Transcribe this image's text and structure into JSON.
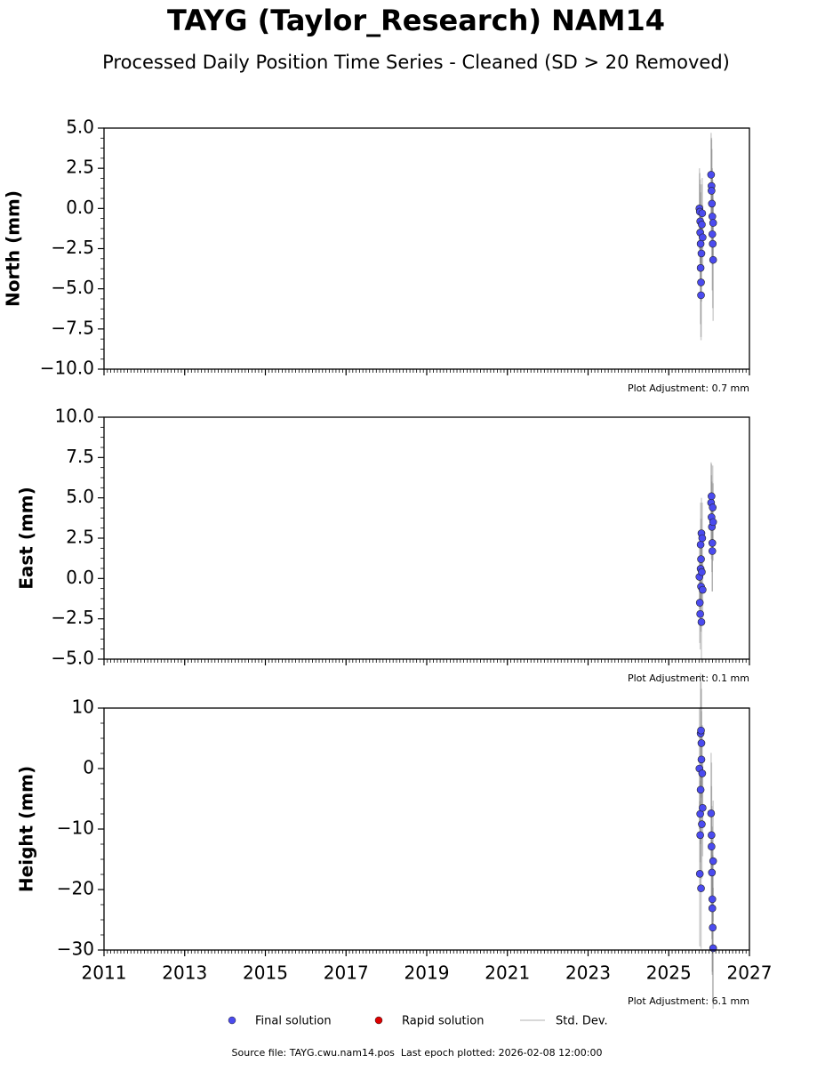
{
  "title": "TAYG (Taylor_Research) NAM14",
  "subtitle": "Processed Daily Position Time Series - Cleaned (SD > 20 Removed)",
  "legend": [
    {
      "name": "Final solution",
      "color": "#4b4bef",
      "marker": "dot"
    },
    {
      "name": "Rapid solution",
      "color": "#dd0000",
      "marker": "dot"
    },
    {
      "name": "Std. Dev.",
      "color": "#cccccc",
      "marker": "line"
    }
  ],
  "footer": "Source file: TAYG.cwu.nam14.pos  Last epoch plotted: 2026-02-08 12:00:00",
  "chart_data": [
    {
      "type": "scatter",
      "ylabel": "North (mm)",
      "annotation": "Plot Adjustment: 0.7 mm",
      "xlim": [
        2011,
        2027
      ],
      "xticks": [
        2011,
        2013,
        2015,
        2017,
        2019,
        2021,
        2023,
        2025,
        2027
      ],
      "xticklabels": false,
      "ylim": [
        -10,
        5
      ],
      "yticks": [
        {
          "value": -10,
          "label": "−10.0"
        },
        {
          "value": -7.5,
          "label": "−7.5"
        },
        {
          "value": -5,
          "label": "−5.0"
        },
        {
          "value": -2.5,
          "label": "−2.5"
        },
        {
          "value": 0,
          "label": "0.0"
        },
        {
          "value": 2.5,
          "label": "2.5"
        },
        {
          "value": 5,
          "label": "5.0"
        }
      ],
      "series": [
        {
          "color": "#4b4bef",
          "error_color": "#777777",
          "x": [
            2025.76,
            2025.77,
            2025.78,
            2025.78,
            2025.79,
            2025.79,
            2025.8,
            2025.8,
            2025.81,
            2025.82,
            2025.83,
            2025.84,
            2026.05,
            2026.06,
            2026.06,
            2026.07,
            2026.08,
            2026.08,
            2026.09,
            2026.1,
            2026.1
          ],
          "values": [
            0.0,
            -0.2,
            -0.8,
            -1.5,
            -2.2,
            -3.7,
            -4.6,
            -5.4,
            -2.8,
            -1.0,
            -0.3,
            -1.8,
            2.1,
            1.4,
            1.1,
            0.3,
            -0.5,
            -1.6,
            -2.2,
            -3.2,
            -0.9
          ],
          "errors": [
            2.5,
            2.4,
            2.6,
            3.0,
            3.2,
            3.5,
            3.4,
            2.8,
            3.0,
            2.5,
            2.2,
            2.0,
            2.6,
            3.0,
            3.2,
            3.4,
            3.0,
            3.5,
            4.0,
            3.8,
            2.5
          ]
        }
      ]
    },
    {
      "type": "scatter",
      "ylabel": "East (mm)",
      "annotation": "Plot Adjustment: 0.1 mm",
      "xlim": [
        2011,
        2027
      ],
      "xticks": [
        2011,
        2013,
        2015,
        2017,
        2019,
        2021,
        2023,
        2025,
        2027
      ],
      "xticklabels": false,
      "ylim": [
        -5,
        10
      ],
      "yticks": [
        {
          "value": -5,
          "label": "−5.0"
        },
        {
          "value": -2.5,
          "label": "−2.5"
        },
        {
          "value": 0,
          "label": "0.0"
        },
        {
          "value": 2.5,
          "label": "2.5"
        },
        {
          "value": 5,
          "label": "5.0"
        },
        {
          "value": 7.5,
          "label": "7.5"
        },
        {
          "value": 10,
          "label": "10.0"
        }
      ],
      "series": [
        {
          "color": "#4b4bef",
          "error_color": "#777777",
          "x": [
            2025.76,
            2025.77,
            2025.78,
            2025.79,
            2025.79,
            2025.8,
            2025.8,
            2025.81,
            2025.81,
            2025.82,
            2025.83,
            2025.84,
            2026.05,
            2026.06,
            2026.06,
            2026.07,
            2026.08,
            2026.08,
            2026.09,
            2026.1
          ],
          "values": [
            0.1,
            -1.5,
            -2.2,
            0.6,
            2.1,
            1.2,
            -0.5,
            2.8,
            -2.7,
            0.4,
            2.5,
            -0.7,
            4.7,
            5.1,
            3.8,
            3.2,
            2.2,
            1.7,
            4.4,
            3.5
          ],
          "errors": [
            2.0,
            2.5,
            2.2,
            2.4,
            2.6,
            2.5,
            2.8,
            2.2,
            2.5,
            2.0,
            2.2,
            2.0,
            2.5,
            2.0,
            2.6,
            2.8,
            3.0,
            2.5,
            2.6,
            2.4
          ]
        }
      ]
    },
    {
      "type": "scatter",
      "ylabel": "Height (mm)",
      "annotation": "Plot Adjustment: 6.1 mm",
      "xlim": [
        2011,
        2027
      ],
      "xticks": [
        2011,
        2013,
        2015,
        2017,
        2019,
        2021,
        2023,
        2025,
        2027
      ],
      "xticklabels": true,
      "ylim": [
        -30,
        10
      ],
      "yticks": [
        {
          "value": -30,
          "label": "−30"
        },
        {
          "value": -20,
          "label": "−20"
        },
        {
          "value": -10,
          "label": "−10"
        },
        0,
        10
      ],
      "series": [
        {
          "color": "#4b4bef",
          "error_color": "#777777",
          "x": [
            2025.76,
            2025.77,
            2025.78,
            2025.78,
            2025.79,
            2025.79,
            2025.8,
            2025.8,
            2025.81,
            2025.81,
            2025.82,
            2025.83,
            2025.84,
            2026.05,
            2026.06,
            2026.06,
            2026.07,
            2026.08,
            2026.08,
            2026.09,
            2026.1,
            2026.1
          ],
          "values": [
            0,
            -17.4,
            -11,
            -7.5,
            5.8,
            -3.5,
            -19.8,
            6.3,
            4.2,
            1.5,
            -9.2,
            -0.8,
            -6.5,
            -7.4,
            -11,
            -12.9,
            -17.2,
            -21.6,
            -23.1,
            -26.3,
            -29.7,
            -15.3
          ],
          "errors": [
            10,
            12,
            9,
            8,
            10,
            9,
            10,
            8,
            9,
            8,
            9,
            8,
            8,
            10,
            12,
            10,
            11,
            12,
            11,
            12,
            10,
            10
          ]
        }
      ]
    }
  ]
}
